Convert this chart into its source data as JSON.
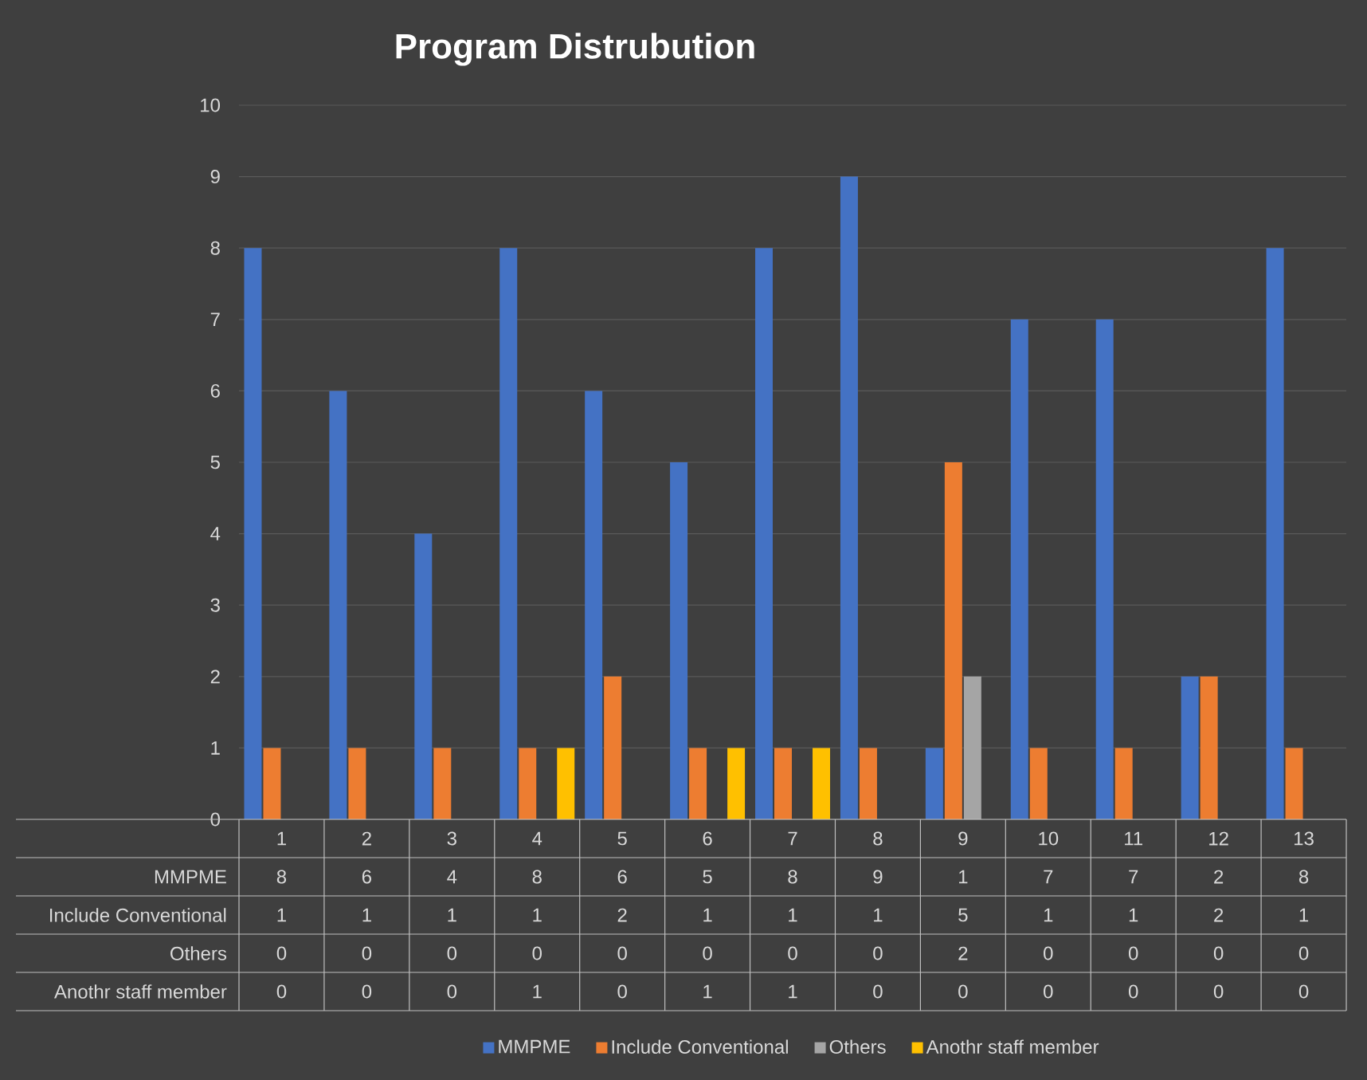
{
  "chart_data": {
    "type": "bar",
    "title": "Program Distrubution",
    "categories": [
      "1",
      "2",
      "3",
      "4",
      "5",
      "6",
      "7",
      "8",
      "9",
      "10",
      "11",
      "12",
      "13"
    ],
    "series": [
      {
        "name": "MMPME",
        "color": "#4472c4",
        "values": [
          8,
          6,
          4,
          8,
          6,
          5,
          8,
          9,
          1,
          7,
          7,
          2,
          8
        ]
      },
      {
        "name": "Include Conventional",
        "color": "#ed7d31",
        "values": [
          1,
          1,
          1,
          1,
          2,
          1,
          1,
          1,
          5,
          1,
          1,
          2,
          1
        ]
      },
      {
        "name": "Others",
        "color": "#a5a5a5",
        "values": [
          0,
          0,
          0,
          0,
          0,
          0,
          0,
          0,
          2,
          0,
          0,
          0,
          0
        ]
      },
      {
        "name": "Anothr staff member",
        "color": "#ffc000",
        "values": [
          0,
          0,
          0,
          1,
          0,
          1,
          1,
          0,
          0,
          0,
          0,
          0,
          0
        ]
      }
    ],
    "ylim": [
      0,
      10
    ],
    "yticks": [
      0,
      1,
      2,
      3,
      4,
      5,
      6,
      7,
      8,
      9,
      10
    ],
    "grid": "y",
    "legend": "bottom",
    "data_labels": true
  }
}
